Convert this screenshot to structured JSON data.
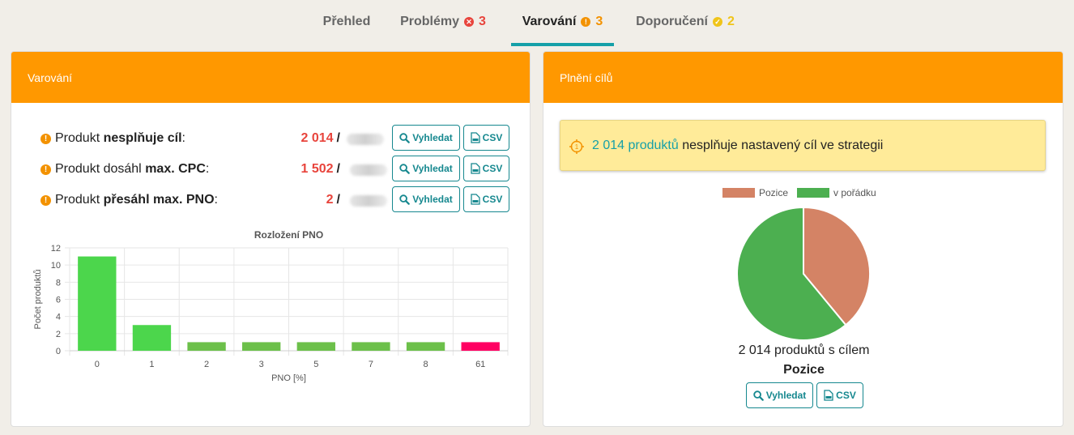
{
  "tabs": [
    {
      "label": "Přehled",
      "count": "",
      "status": ""
    },
    {
      "label": "Problémy",
      "count": "3",
      "status": "error"
    },
    {
      "label": "Varování",
      "count": "3",
      "status": "warning"
    },
    {
      "label": "Doporučení",
      "count": "2",
      "status": "ok"
    }
  ],
  "active_tab": "Varování",
  "colors": {
    "accent": "#16a0a8",
    "panel_header": "#ff9800",
    "error": "#e8443c",
    "warning": "#f39200",
    "ok": "#f0c419",
    "bar_green": "#4cd64c",
    "bar_green_dark": "#6cc04a",
    "bar_pink": "#ff0062",
    "pie_red": "#d48365",
    "pie_green": "#4caf50"
  },
  "warnings_panel": {
    "title": "Varování",
    "rows": [
      {
        "prefix": "Produkt ",
        "bold": "nesplňuje cíl",
        "suffix": ":",
        "value": "2 014",
        "slash": "/"
      },
      {
        "prefix": "Produkt dosáhl ",
        "bold": "max. CPC",
        "suffix": ":",
        "value": "1 502",
        "slash": "/"
      },
      {
        "prefix": "Produkt ",
        "bold": "přesáhl max. PNO",
        "suffix": ":",
        "value": "2",
        "slash": "/"
      }
    ],
    "search_label": "Vyhledat",
    "csv_label": "CSV"
  },
  "goals_panel": {
    "title": "Plnění cílů",
    "notice_link": "2 014 produktů",
    "notice_text": " nesplňuje nastavený cíl ve strategii",
    "caption": "2 014 produktů s cílem",
    "strategy": "Pozice",
    "search_label": "Vyhledat",
    "csv_label": "CSV"
  },
  "chart_data": [
    {
      "type": "bar",
      "title": "Rozložení PNO",
      "xlabel": "PNO [%]",
      "ylabel": "Počet produktů",
      "categories": [
        "0",
        "1",
        "2",
        "3",
        "5",
        "7",
        "8",
        "61"
      ],
      "values": [
        11,
        3,
        1,
        1,
        1,
        1,
        1,
        1
      ],
      "ylim": [
        0,
        12
      ],
      "yticks": [
        0,
        2,
        4,
        6,
        8,
        10,
        12
      ],
      "grid": true
    },
    {
      "type": "pie",
      "legend": [
        "Pozice",
        "v pořádku"
      ],
      "slices": [
        {
          "label": "Pozice",
          "value": 0.39
        },
        {
          "label": "v pořádku",
          "value": 0.61
        }
      ],
      "legend_position": "top"
    }
  ]
}
